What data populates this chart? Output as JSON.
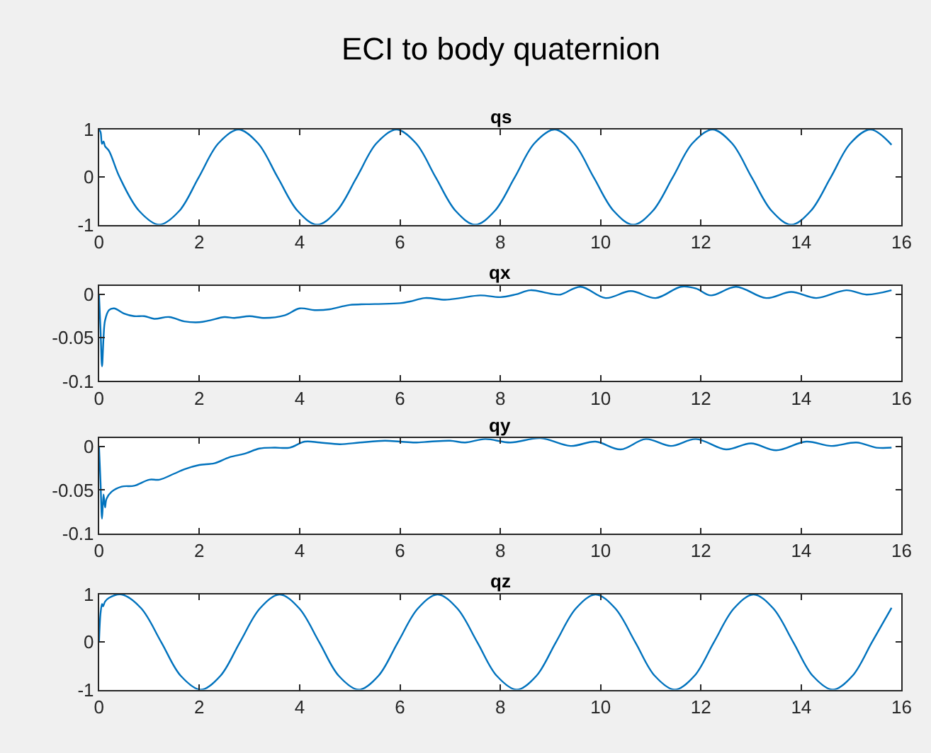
{
  "chart_data": [
    {
      "type": "line",
      "title": "qs",
      "annotations": [
        "ECI to body quaternion"
      ],
      "xlim": [
        0,
        16
      ],
      "xticks": [
        0,
        2,
        4,
        6,
        8,
        10,
        12,
        14,
        16
      ],
      "ylim": [
        -1,
        1
      ],
      "yticks": [
        -1,
        0,
        1
      ],
      "x": [
        0,
        0.03,
        0.06,
        0.09,
        0.12,
        0.2,
        0.41,
        0.8,
        1.2,
        1.6,
        1.99,
        2.38,
        2.78,
        3.17,
        3.56,
        3.96,
        4.35,
        4.74,
        5.14,
        5.53,
        5.93,
        6.32,
        6.71,
        7.11,
        7.5,
        7.89,
        8.29,
        8.68,
        9.08,
        9.47,
        9.86,
        10.26,
        10.65,
        11.04,
        11.44,
        11.83,
        12.23,
        12.62,
        13.01,
        13.41,
        13.8,
        14.19,
        14.59,
        14.98,
        15.38,
        15.8
      ],
      "series": [
        {
          "color": "#0072bd",
          "values": [
            1,
            0.95,
            0.7,
            0.75,
            0.65,
            0.55,
            0,
            -0.71,
            -1,
            -0.71,
            0,
            0.71,
            1,
            0.71,
            0,
            -0.71,
            -1,
            -0.71,
            0,
            0.71,
            1,
            0.71,
            0,
            -0.71,
            -1,
            -0.71,
            0,
            0.71,
            1,
            0.71,
            0,
            -0.71,
            -1,
            -0.71,
            0,
            0.71,
            1,
            0.71,
            0,
            -0.71,
            -1,
            -0.71,
            0,
            0.71,
            1,
            0.68
          ]
        }
      ]
    },
    {
      "type": "line",
      "title": "qx",
      "xlim": [
        0,
        16
      ],
      "xticks": [
        0,
        2,
        4,
        6,
        8,
        10,
        12,
        14,
        16
      ],
      "ylim": [
        -0.1,
        0.01
      ],
      "yticks": [
        -0.1,
        -0.05,
        0
      ],
      "x": [
        0,
        0.03,
        0.06,
        0.09,
        0.12,
        0.2,
        0.3,
        0.5,
        0.7,
        0.9,
        1.1,
        1.4,
        1.7,
        2.0,
        2.2,
        2.5,
        2.7,
        3.0,
        3.3,
        3.7,
        4.0,
        4.3,
        4.6,
        5.0,
        5.5,
        6.0,
        6.2,
        6.5,
        6.9,
        7.2,
        7.6,
        8.0,
        8.3,
        8.6,
        9.0,
        9.2,
        9.6,
        10.1,
        10.6,
        11.1,
        11.6,
        11.9,
        12.2,
        12.7,
        13.3,
        13.8,
        14.3,
        14.9,
        15.3,
        15.8
      ],
      "series": [
        {
          "color": "#0072bd",
          "values": [
            0,
            -0.04,
            -0.083,
            -0.05,
            -0.03,
            -0.018,
            -0.016,
            -0.022,
            -0.025,
            -0.025,
            -0.028,
            -0.026,
            -0.031,
            -0.032,
            -0.03,
            -0.026,
            -0.027,
            -0.025,
            -0.027,
            -0.024,
            -0.016,
            -0.018,
            -0.017,
            -0.012,
            -0.011,
            -0.01,
            -0.008,
            -0.004,
            -0.006,
            -0.004,
            -0.001,
            -0.003,
            0.0,
            0.005,
            0.001,
            0.0,
            0.009,
            -0.004,
            0.004,
            -0.004,
            0.009,
            0.007,
            -0.001,
            0.009,
            -0.004,
            0.003,
            -0.004,
            0.005,
            0.0,
            0.005
          ]
        }
      ]
    },
    {
      "type": "line",
      "title": "qy",
      "xlim": [
        0,
        16
      ],
      "xticks": [
        0,
        2,
        4,
        6,
        8,
        10,
        12,
        14,
        16
      ],
      "ylim": [
        -0.1,
        0.01
      ],
      "yticks": [
        -0.1,
        -0.05,
        0
      ],
      "x": [
        0,
        0.03,
        0.06,
        0.09,
        0.12,
        0.15,
        0.25,
        0.45,
        0.7,
        1.0,
        1.2,
        1.5,
        1.7,
        2.0,
        2.3,
        2.6,
        2.9,
        3.2,
        3.5,
        3.8,
        4.1,
        4.4,
        4.8,
        5.2,
        5.7,
        6.0,
        6.3,
        6.6,
        7.0,
        7.3,
        7.7,
        8.2,
        8.8,
        9.4,
        9.9,
        10.4,
        10.9,
        11.4,
        11.9,
        12.5,
        13.0,
        13.5,
        14.1,
        14.6,
        15.1,
        15.5,
        15.8
      ],
      "series": [
        {
          "color": "#0072bd",
          "values": [
            0,
            -0.04,
            -0.083,
            -0.055,
            -0.07,
            -0.06,
            -0.052,
            -0.046,
            -0.045,
            -0.038,
            -0.038,
            -0.031,
            -0.026,
            -0.021,
            -0.019,
            -0.012,
            -0.008,
            -0.002,
            -0.001,
            -0.001,
            0.006,
            0.005,
            0.003,
            0.005,
            0.007,
            0.006,
            0.005,
            0.006,
            0.007,
            0.005,
            0.009,
            0.005,
            0.01,
            0.001,
            0.006,
            -0.003,
            0.009,
            0.001,
            0.009,
            -0.003,
            0.004,
            -0.004,
            0.006,
            0.001,
            0.005,
            -0.001,
            -0.001
          ]
        }
      ]
    },
    {
      "type": "line",
      "title": "qz",
      "xlim": [
        0,
        16
      ],
      "xticks": [
        0,
        2,
        4,
        6,
        8,
        10,
        12,
        14,
        16
      ],
      "ylim": [
        -1,
        1
      ],
      "yticks": [
        -1,
        0,
        1
      ],
      "x": [
        0,
        0.03,
        0.06,
        0.08,
        0.12,
        0.2,
        0.45,
        0.84,
        1.24,
        1.63,
        2.03,
        2.42,
        2.81,
        3.21,
        3.6,
        3.99,
        4.39,
        4.78,
        5.18,
        5.57,
        5.96,
        6.36,
        6.75,
        7.14,
        7.54,
        7.93,
        8.33,
        8.72,
        9.11,
        9.51,
        9.9,
        10.29,
        10.69,
        11.08,
        11.48,
        11.87,
        12.26,
        12.66,
        13.05,
        13.44,
        13.84,
        14.23,
        14.63,
        15.02,
        15.41,
        15.8
      ],
      "series": [
        {
          "color": "#0072bd",
          "values": [
            0,
            0.6,
            0.8,
            0.75,
            0.85,
            0.93,
            1,
            0.71,
            0,
            -0.71,
            -1,
            -0.71,
            0,
            0.71,
            1,
            0.71,
            0,
            -0.71,
            -1,
            -0.71,
            0,
            0.71,
            1,
            0.71,
            0,
            -0.71,
            -1,
            -0.71,
            0,
            0.71,
            1,
            0.71,
            0,
            -0.71,
            -1,
            -0.71,
            0,
            0.71,
            1,
            0.71,
            0,
            -0.71,
            -1,
            -0.71,
            0,
            0.72
          ]
        }
      ]
    }
  ]
}
